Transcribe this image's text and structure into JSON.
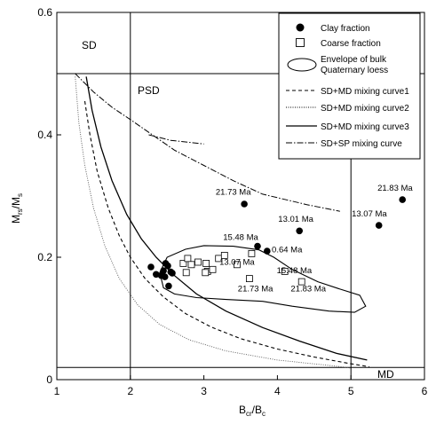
{
  "chart_data": {
    "type": "scatter",
    "xlabel_main": "B",
    "xlabel_sub1": "cr",
    "xlabel_mid": "/B",
    "xlabel_sub2": "c",
    "ylabel_main": "M",
    "ylabel_sub1": "rs",
    "ylabel_mid": "/M",
    "ylabel_sub2": "s",
    "xlim": [
      1,
      6
    ],
    "ylim": [
      0,
      0.6
    ],
    "x_ticks": [
      "1",
      "2",
      "3",
      "4",
      "5",
      "6"
    ],
    "y_ticks": [
      "0",
      "0.2",
      "0.4",
      "0.6"
    ],
    "regions": {
      "sd": "SD",
      "psd": "PSD",
      "md": "MD"
    },
    "legend": {
      "position": "top-right",
      "items": [
        "Clay fraction",
        "Coarse fraction",
        "Envelope of bulk Quaternary loess",
        "SD+MD mixing curve1",
        "SD+MD mixing curve2",
        "SD+MD mixing curve3",
        "SD+SP mixing curve"
      ]
    },
    "clay_fraction": [
      [
        2.28,
        0.184
      ],
      [
        2.35,
        0.172
      ],
      [
        2.42,
        0.17
      ],
      [
        2.45,
        0.178
      ],
      [
        2.48,
        0.19
      ],
      [
        2.51,
        0.186
      ],
      [
        2.47,
        0.168
      ],
      [
        2.55,
        0.176
      ],
      [
        2.57,
        0.174
      ],
      [
        2.52,
        0.153
      ],
      [
        3.55,
        0.287
      ],
      [
        3.73,
        0.218
      ],
      [
        3.86,
        0.21
      ],
      [
        4.3,
        0.243
      ],
      [
        5.38,
        0.252
      ],
      [
        5.7,
        0.294
      ]
    ],
    "coarse_fraction": [
      [
        2.72,
        0.19
      ],
      [
        2.78,
        0.198
      ],
      [
        2.83,
        0.188
      ],
      [
        2.76,
        0.175
      ],
      [
        2.92,
        0.192
      ],
      [
        3.03,
        0.19
      ],
      [
        3.05,
        0.177
      ],
      [
        3.02,
        0.175
      ],
      [
        3.12,
        0.18
      ],
      [
        3.2,
        0.198
      ],
      [
        3.28,
        0.203
      ],
      [
        3.45,
        0.188
      ],
      [
        3.65,
        0.206
      ],
      [
        3.62,
        0.165
      ],
      [
        4.1,
        0.177
      ],
      [
        4.33,
        0.16
      ]
    ],
    "annotations": [
      {
        "text": "21.73 Ma",
        "x": 3.4,
        "y": 0.302
      },
      {
        "text": "15.48 Ma",
        "x": 3.5,
        "y": 0.228
      },
      {
        "text": "0.64 Ma",
        "x": 4.13,
        "y": 0.208
      },
      {
        "text": "13.01 Ma",
        "x": 4.25,
        "y": 0.258
      },
      {
        "text": "13.07 Ma",
        "x": 5.25,
        "y": 0.267
      },
      {
        "text": "21.83 Ma",
        "x": 5.6,
        "y": 0.309
      },
      {
        "text": "13.07 Ma",
        "x": 3.45,
        "y": 0.188
      },
      {
        "text": "15.48 Ma",
        "x": 4.23,
        "y": 0.174
      },
      {
        "text": "21.73 Ma",
        "x": 3.7,
        "y": 0.144
      },
      {
        "text": "21.83 Ma",
        "x": 4.42,
        "y": 0.144
      }
    ],
    "envelope": [
      [
        2.45,
        0.15
      ],
      [
        2.4,
        0.175
      ],
      [
        2.5,
        0.2
      ],
      [
        2.75,
        0.213
      ],
      [
        3.0,
        0.219
      ],
      [
        3.4,
        0.218
      ],
      [
        3.75,
        0.212
      ],
      [
        3.95,
        0.2
      ],
      [
        4.2,
        0.18
      ],
      [
        4.55,
        0.16
      ],
      [
        4.85,
        0.148
      ],
      [
        5.12,
        0.138
      ],
      [
        5.2,
        0.12
      ],
      [
        5.05,
        0.11
      ],
      [
        4.7,
        0.112
      ],
      [
        4.2,
        0.12
      ],
      [
        3.8,
        0.128
      ],
      [
        3.3,
        0.131
      ],
      [
        2.9,
        0.134
      ],
      [
        2.6,
        0.14
      ],
      [
        2.45,
        0.15
      ]
    ],
    "sd_md_curve1": [
      [
        1.38,
        0.455
      ],
      [
        1.45,
        0.4
      ],
      [
        1.55,
        0.34
      ],
      [
        1.7,
        0.28
      ],
      [
        1.85,
        0.235
      ],
      [
        2.0,
        0.2
      ],
      [
        2.2,
        0.165
      ],
      [
        2.45,
        0.135
      ],
      [
        2.75,
        0.108
      ],
      [
        3.1,
        0.086
      ],
      [
        3.5,
        0.067
      ],
      [
        4.0,
        0.05
      ],
      [
        4.5,
        0.037
      ],
      [
        5.0,
        0.026
      ],
      [
        5.25,
        0.021
      ]
    ],
    "sd_md_curve2": [
      [
        1.25,
        0.495
      ],
      [
        1.3,
        0.42
      ],
      [
        1.38,
        0.35
      ],
      [
        1.5,
        0.28
      ],
      [
        1.65,
        0.22
      ],
      [
        1.85,
        0.165
      ],
      [
        2.1,
        0.122
      ],
      [
        2.4,
        0.09
      ],
      [
        2.8,
        0.065
      ],
      [
        3.3,
        0.047
      ],
      [
        4.0,
        0.032
      ],
      [
        4.8,
        0.022
      ],
      [
        5.0,
        0.019
      ]
    ],
    "sd_md_curve3": [
      [
        1.4,
        0.495
      ],
      [
        1.48,
        0.44
      ],
      [
        1.6,
        0.38
      ],
      [
        1.75,
        0.325
      ],
      [
        1.95,
        0.27
      ],
      [
        2.15,
        0.23
      ],
      [
        2.35,
        0.2
      ],
      [
        2.6,
        0.17
      ],
      [
        2.9,
        0.14
      ],
      [
        3.3,
        0.112
      ],
      [
        3.8,
        0.085
      ],
      [
        4.3,
        0.063
      ],
      [
        4.8,
        0.043
      ],
      [
        5.22,
        0.032
      ]
    ],
    "sd_sp_curve": [
      [
        1.25,
        0.5
      ],
      [
        1.5,
        0.47
      ],
      [
        1.75,
        0.445
      ],
      [
        2.0,
        0.425
      ],
      [
        2.3,
        0.4
      ],
      [
        2.6,
        0.375
      ],
      [
        3.0,
        0.35
      ],
      [
        3.4,
        0.325
      ],
      [
        3.8,
        0.303
      ],
      [
        4.4,
        0.286
      ],
      [
        4.85,
        0.275
      ]
    ],
    "sd_sp_curve_branch": [
      [
        2.25,
        0.4
      ],
      [
        2.55,
        0.391
      ],
      [
        3.0,
        0.385
      ]
    ],
    "ref_lines": {
      "mrs_sd": 0.5,
      "mrs_md": 0.02,
      "bcr_sd": 2,
      "bcr_md": 5
    }
  }
}
